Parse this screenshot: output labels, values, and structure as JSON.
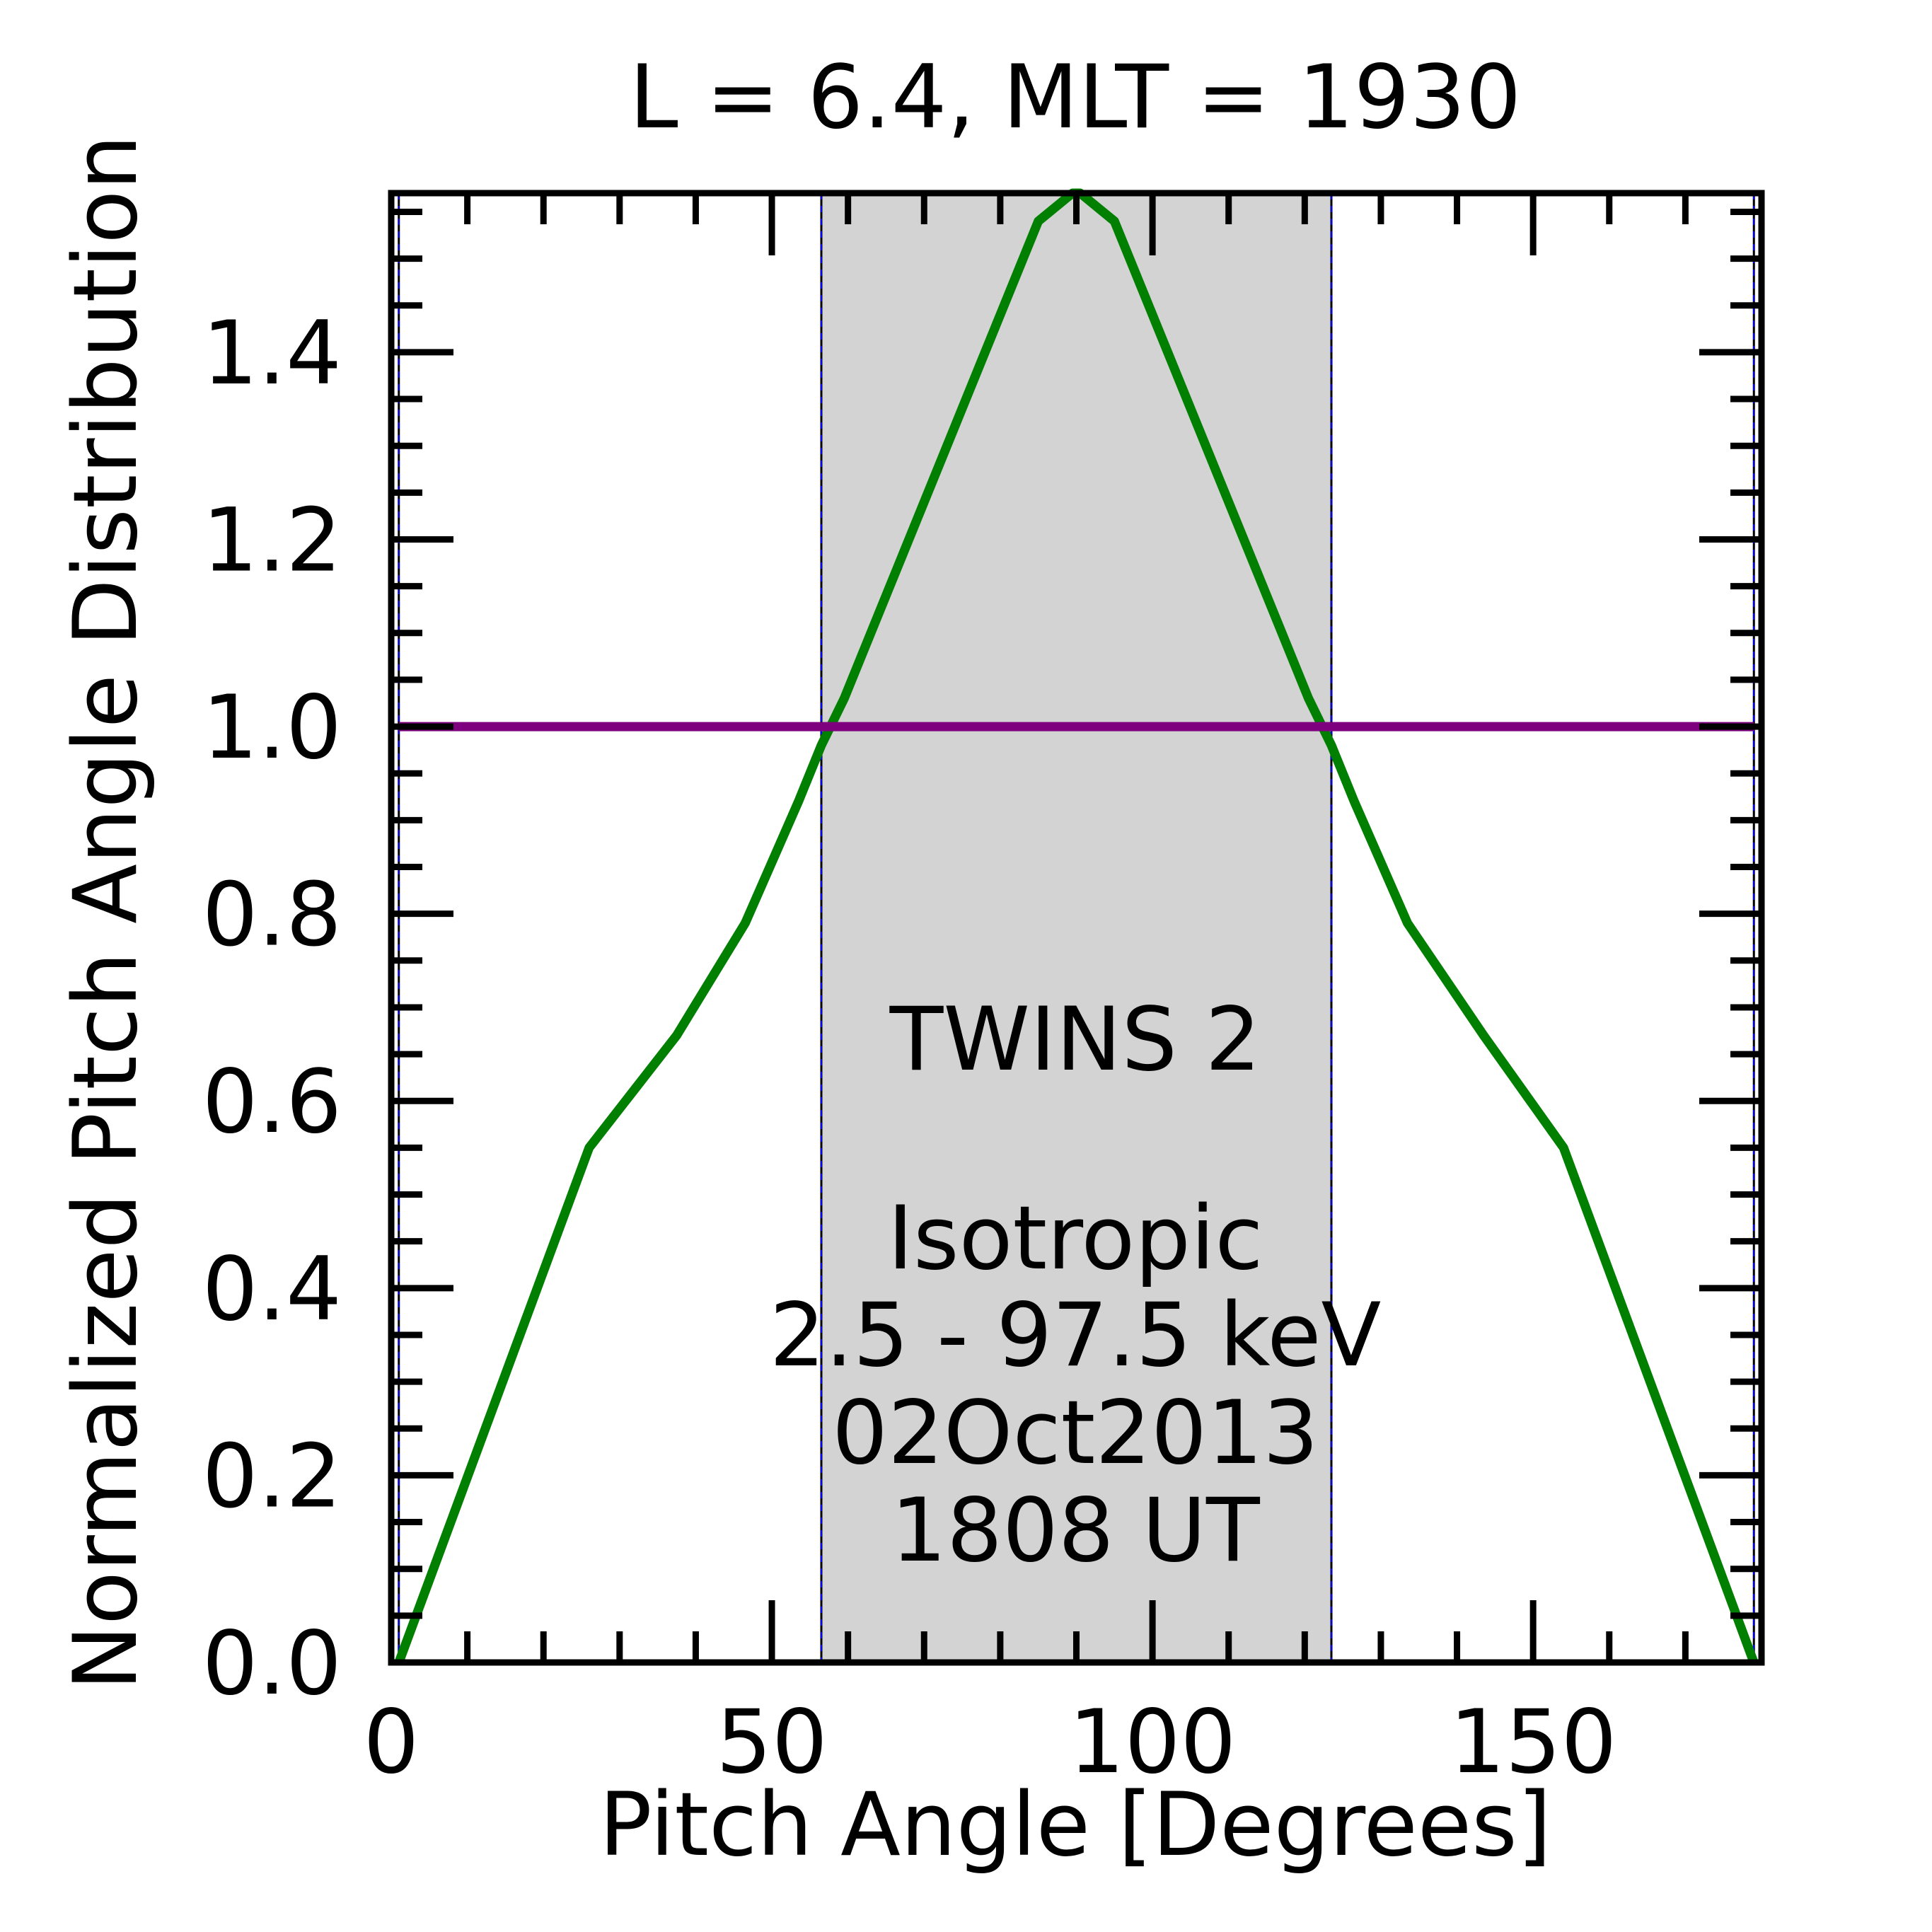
{
  "chart_data": {
    "type": "line",
    "title": "L =  6.4, MLT = 1930",
    "xlabel": "Pitch Angle [Degrees]",
    "ylabel": "Normalized Pitch Angle Distribution",
    "xlim": [
      0,
      180
    ],
    "ylim": [
      0,
      1.57
    ],
    "xticks": [
      0,
      50,
      100,
      150
    ],
    "xtick_labels": [
      "0",
      "50",
      "100",
      "150"
    ],
    "yticks": [
      0.0,
      0.2,
      0.4,
      0.6,
      0.8,
      1.0,
      1.2,
      1.4
    ],
    "ytick_labels": [
      "0.0",
      "0.2",
      "0.4",
      "0.6",
      "0.8",
      "1.0",
      "1.2",
      "1.4"
    ],
    "x_minor_step": 10,
    "y_minor_step": 0.05,
    "grid": false,
    "shaded_region": {
      "x": [
        56.5,
        123.5
      ],
      "color": "#d3d3d3"
    },
    "vertical_lines": [
      {
        "x": 1,
        "color": "#0000ff"
      },
      {
        "x": 56.5,
        "color": "#0000ff"
      },
      {
        "x": 123.5,
        "color": "#0000ff"
      },
      {
        "x": 179,
        "color": "#0000ff"
      }
    ],
    "series": [
      {
        "name": "TWINS 2",
        "color": "#007f00",
        "x": [
          1,
          26,
          37.5,
          46.5,
          53.5,
          56.5,
          59.5,
          64,
          70,
          77.5,
          85,
          89.5,
          90.5,
          95,
          102.5,
          110,
          116,
          120.5,
          123.5,
          126.5,
          133.5,
          143.5,
          154,
          179
        ],
        "y": [
          0.0,
          0.55,
          0.67,
          0.79,
          0.92,
          0.98,
          1.03,
          1.12,
          1.24,
          1.39,
          1.54,
          1.63,
          1.63,
          1.54,
          1.39,
          1.24,
          1.12,
          1.03,
          0.98,
          0.92,
          0.79,
          0.67,
          0.55,
          0.0
        ]
      },
      {
        "name": "Isotropic",
        "color": "#7f007f",
        "x": [
          1,
          179
        ],
        "y": [
          1.0,
          1.0
        ]
      }
    ],
    "annotations": {
      "energy": "2.5 - 97.5 keV",
      "date": "02Oct2013",
      "time": "1808 UT"
    }
  }
}
